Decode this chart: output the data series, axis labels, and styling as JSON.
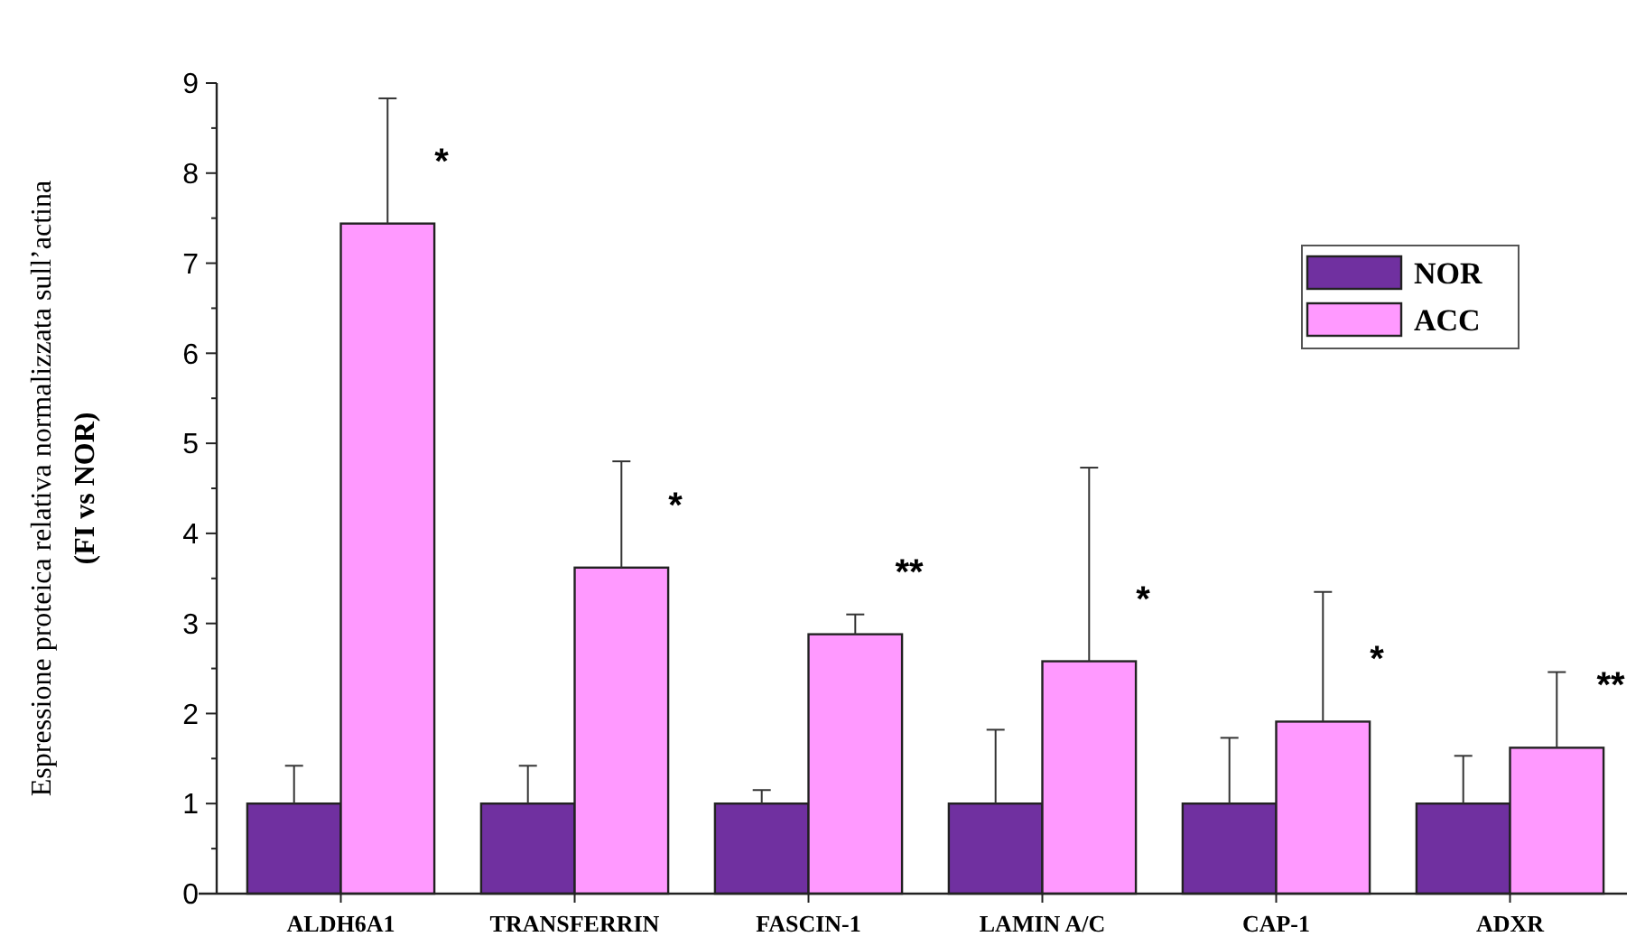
{
  "chart_data": {
    "type": "bar",
    "ylabel": "Espressione proteica relativa normalizzata sull’actina\n(FI vs NOR)",
    "categories": [
      "ALDH6A1",
      "TRANSFERRIN",
      "FASCIN-1",
      "LAMIN A/C",
      "CAP-1",
      "ADXR"
    ],
    "series": [
      {
        "name": "NOR",
        "color": "#7030a0",
        "values": [
          1,
          1,
          1,
          1,
          1,
          1
        ],
        "errors": [
          [
            1,
            1.42
          ],
          [
            1,
            1.42
          ],
          [
            1,
            1.15
          ],
          [
            1,
            1.82
          ],
          [
            1,
            1.73
          ],
          [
            1,
            1.53
          ]
        ]
      },
      {
        "name": "ACC",
        "color": "#ff99ff",
        "values": [
          7.44,
          3.62,
          2.88,
          2.58,
          1.91,
          1.62
        ],
        "errors": [
          [
            7.44,
            8.83
          ],
          [
            3.62,
            4.8
          ],
          [
            2.88,
            3.1
          ],
          [
            2.58,
            4.73
          ],
          [
            1.91,
            3.35
          ],
          [
            1.62,
            2.46
          ]
        ]
      }
    ],
    "ylim": [
      0,
      9
    ],
    "yticks": [
      0,
      {
        "value": 0.5,
        "label": null
      },
      1,
      {
        "value": 1.5,
        "label": null
      },
      2,
      {
        "value": 2.5,
        "label": null
      },
      3,
      {
        "value": 3.5,
        "label": null
      },
      4,
      {
        "value": 4.5,
        "label": null
      },
      5,
      {
        "value": 5.5,
        "label": null
      },
      6,
      {
        "value": 6.5,
        "label": null
      },
      7,
      {
        "value": 7.5,
        "label": null
      },
      8,
      {
        "value": 8.5,
        "label": null
      },
      9
    ],
    "annotations": [
      "*",
      "*",
      "**",
      "*",
      "*",
      "**"
    ],
    "legend": "top right",
    "grid": false
  }
}
